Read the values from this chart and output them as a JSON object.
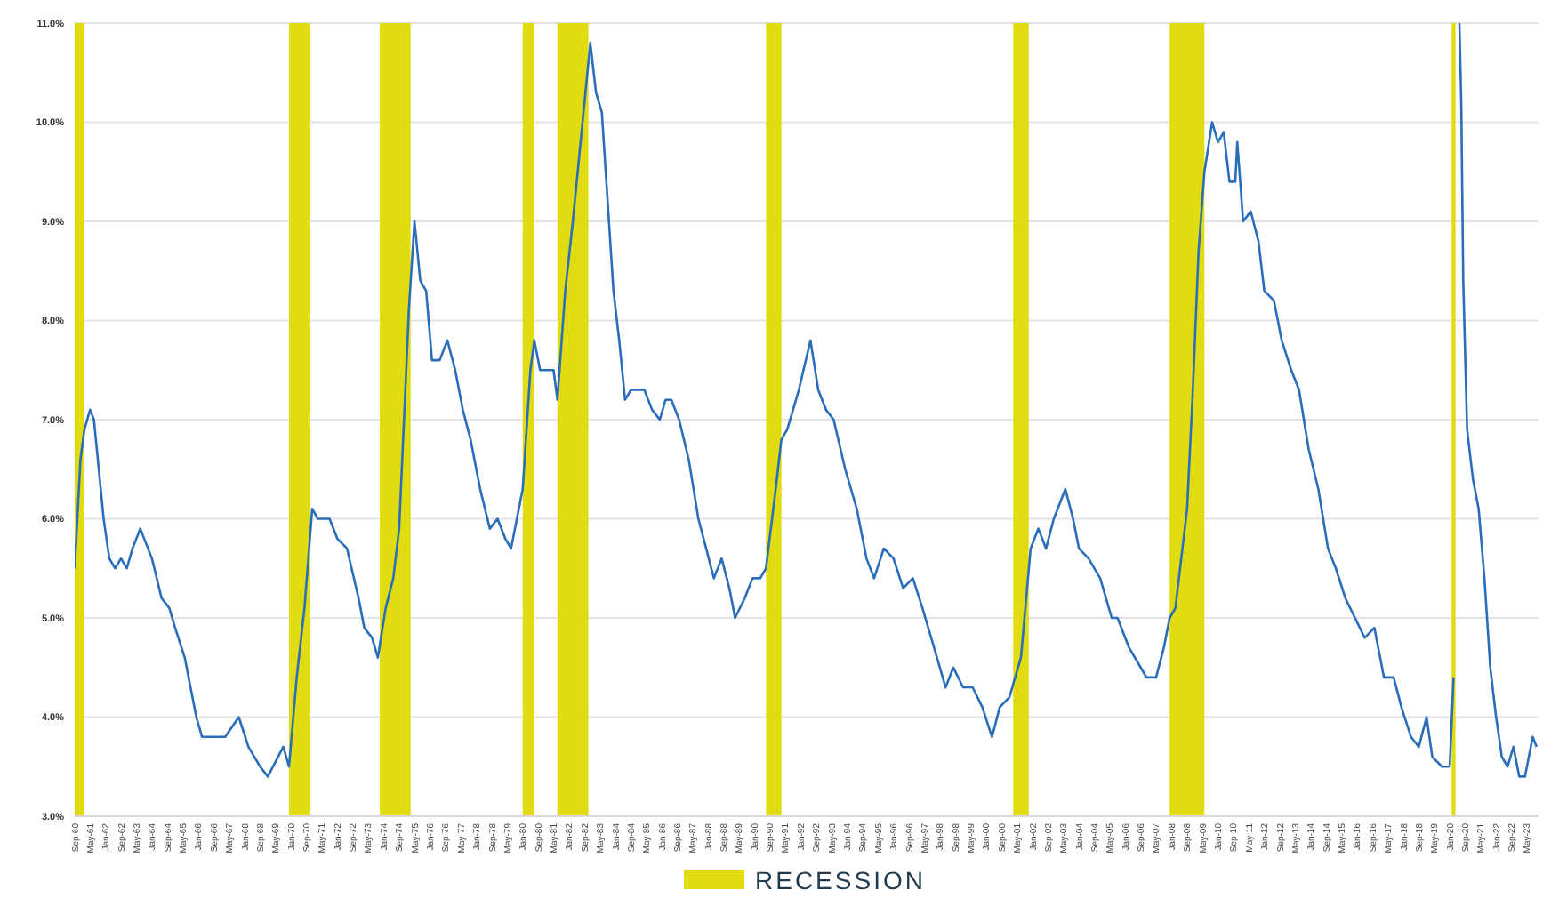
{
  "chart_data": {
    "type": "line",
    "legend": "bottom",
    "grid": "y",
    "x": [
      "1960-09",
      "1960-12",
      "1961-02",
      "1961-05",
      "1961-07",
      "1961-12",
      "1962-03",
      "1962-06",
      "1962-09",
      "1962-12",
      "1963-03",
      "1963-07",
      "1964-01",
      "1964-06",
      "1964-10",
      "1965-01",
      "1965-06",
      "1965-12",
      "1966-03",
      "1966-09",
      "1967-03",
      "1967-10",
      "1968-03",
      "1968-09",
      "1969-01",
      "1969-09",
      "1969-12",
      "1970-04",
      "1970-08",
      "1970-12",
      "1971-03",
      "1971-09",
      "1972-01",
      "1972-06",
      "1972-12",
      "1973-03",
      "1973-07",
      "1973-10",
      "1974-02",
      "1974-06",
      "1974-09",
      "1974-12",
      "1975-02",
      "1975-05",
      "1975-08",
      "1975-11",
      "1976-02",
      "1976-06",
      "1976-10",
      "1977-02",
      "1977-06",
      "1977-10",
      "1978-03",
      "1978-08",
      "1978-12",
      "1979-04",
      "1979-07",
      "1979-10",
      "1980-01",
      "1980-05",
      "1980-07",
      "1980-10",
      "1981-01",
      "1981-05",
      "1981-07",
      "1981-11",
      "1982-03",
      "1982-07",
      "1982-12",
      "1983-03",
      "1983-06",
      "1983-08",
      "1983-12",
      "1984-03",
      "1984-06",
      "1984-09",
      "1984-12",
      "1985-04",
      "1985-08",
      "1985-12",
      "1986-03",
      "1986-06",
      "1986-10",
      "1987-03",
      "1987-08",
      "1987-12",
      "1988-04",
      "1988-08",
      "1988-12",
      "1989-03",
      "1989-08",
      "1989-12",
      "1990-04",
      "1990-07",
      "1990-12",
      "1991-03",
      "1991-06",
      "1991-12",
      "1992-06",
      "1992-10",
      "1993-02",
      "1993-06",
      "1993-12",
      "1994-06",
      "1994-11",
      "1995-03",
      "1995-08",
      "1996-01",
      "1996-06",
      "1996-11",
      "1997-04",
      "1997-10",
      "1998-04",
      "1998-08",
      "1999-01",
      "1999-06",
      "1999-11",
      "2000-04",
      "2000-08",
      "2001-01",
      "2001-04",
      "2001-07",
      "2001-12",
      "2002-04",
      "2002-08",
      "2002-12",
      "2003-06",
      "2003-10",
      "2004-01",
      "2004-06",
      "2004-12",
      "2005-06",
      "2005-09",
      "2006-03",
      "2006-09",
      "2006-12",
      "2007-05",
      "2007-09",
      "2007-12",
      "2008-03",
      "2008-06",
      "2008-09",
      "2008-12",
      "2009-03",
      "2009-06",
      "2009-10",
      "2010-01",
      "2010-04",
      "2010-07",
      "2010-10",
      "2010-11",
      "2011-02",
      "2011-06",
      "2011-10",
      "2012-01",
      "2012-06",
      "2012-10",
      "2013-03",
      "2013-07",
      "2013-12",
      "2014-05",
      "2014-10",
      "2015-02",
      "2015-07",
      "2015-12",
      "2016-05",
      "2016-10",
      "2017-03",
      "2017-08",
      "2017-12",
      "2018-05",
      "2018-09",
      "2019-01",
      "2019-04",
      "2019-09",
      "2020-01",
      "2020-03",
      "2020-04",
      "2020-05",
      "2020-06",
      "2020-07",
      "2020-08",
      "2020-10",
      "2021-01",
      "2021-04",
      "2021-07",
      "2021-10",
      "2022-01",
      "2022-04",
      "2022-07",
      "2022-10",
      "2023-01",
      "2023-04",
      "2023-06",
      "2023-08",
      "2023-10"
    ],
    "series": [
      {
        "color": "#2a6ebb",
        "values": [
          5.5,
          6.6,
          6.9,
          7.1,
          7.0,
          6.0,
          5.6,
          5.5,
          5.6,
          5.5,
          5.7,
          5.9,
          5.6,
          5.2,
          5.1,
          4.9,
          4.6,
          4.0,
          3.8,
          3.8,
          3.8,
          4.0,
          3.7,
          3.5,
          3.4,
          3.7,
          3.5,
          4.4,
          5.1,
          6.1,
          6.0,
          6.0,
          5.8,
          5.7,
          5.2,
          4.9,
          4.8,
          4.6,
          5.1,
          5.4,
          5.9,
          7.2,
          8.1,
          9.0,
          8.4,
          8.3,
          7.6,
          7.6,
          7.8,
          7.5,
          7.1,
          6.8,
          6.3,
          5.9,
          6.0,
          5.8,
          5.7,
          6.0,
          6.3,
          7.5,
          7.8,
          7.5,
          7.5,
          7.5,
          7.2,
          8.3,
          9.0,
          9.8,
          10.8,
          10.3,
          10.1,
          9.5,
          8.3,
          7.8,
          7.2,
          7.3,
          7.3,
          7.3,
          7.1,
          7.0,
          7.2,
          7.2,
          7.0,
          6.6,
          6.0,
          5.7,
          5.4,
          5.6,
          5.3,
          5.0,
          5.2,
          5.4,
          5.4,
          5.5,
          6.3,
          6.8,
          6.9,
          7.3,
          7.8,
          7.3,
          7.1,
          7.0,
          6.5,
          6.1,
          5.6,
          5.4,
          5.7,
          5.6,
          5.3,
          5.4,
          5.1,
          4.7,
          4.3,
          4.5,
          4.3,
          4.3,
          4.1,
          3.8,
          4.1,
          4.2,
          4.4,
          4.6,
          5.7,
          5.9,
          5.7,
          6.0,
          6.3,
          6.0,
          5.7,
          5.6,
          5.4,
          5.0,
          5.0,
          4.7,
          4.5,
          4.4,
          4.4,
          4.7,
          5.0,
          5.1,
          5.6,
          6.1,
          7.3,
          8.7,
          9.5,
          10.0,
          9.8,
          9.9,
          9.4,
          9.4,
          9.8,
          9.0,
          9.1,
          8.8,
          8.3,
          8.2,
          7.8,
          7.5,
          7.3,
          6.7,
          6.3,
          5.7,
          5.5,
          5.2,
          5.0,
          4.8,
          4.9,
          4.4,
          4.4,
          4.1,
          3.8,
          3.7,
          4.0,
          3.6,
          3.5,
          3.5,
          4.4,
          null,
          null,
          11.0,
          10.2,
          8.4,
          6.9,
          6.4,
          6.1,
          5.4,
          4.5,
          4.0,
          3.6,
          3.5,
          3.7,
          3.4,
          3.4,
          3.6,
          3.8,
          3.7
        ]
      }
    ],
    "xlim": [
      "1960-09",
      "2023-11"
    ],
    "ylim": [
      3,
      11
    ],
    "yticks": [
      {
        "value": 3,
        "label": "3.0%"
      },
      {
        "value": 4,
        "label": "4.0%"
      },
      {
        "value": 5,
        "label": "5.0%"
      },
      {
        "value": 6,
        "label": "6.0%"
      },
      {
        "value": 7,
        "label": "7.0%"
      },
      {
        "value": 8,
        "label": "8.0%"
      },
      {
        "value": 9,
        "label": "9.0%"
      },
      {
        "value": 10,
        "label": "10.0%"
      },
      {
        "value": 11,
        "label": "11.0%"
      }
    ],
    "xticks": [
      {
        "value": "1960-09",
        "label": "Sep-60"
      },
      {
        "value": "1961-05",
        "label": "May-61"
      },
      {
        "value": "1962-01",
        "label": "Jan-62"
      },
      {
        "value": "1962-09",
        "label": "Sep-62"
      },
      {
        "value": "1963-05",
        "label": "May-63"
      },
      {
        "value": "1964-01",
        "label": "Jan-64"
      },
      {
        "value": "1964-09",
        "label": "Sep-64"
      },
      {
        "value": "1965-05",
        "label": "May-65"
      },
      {
        "value": "1966-01",
        "label": "Jan-66"
      },
      {
        "value": "1966-09",
        "label": "Sep-66"
      },
      {
        "value": "1967-05",
        "label": "May-67"
      },
      {
        "value": "1968-01",
        "label": "Jan-68"
      },
      {
        "value": "1968-09",
        "label": "Sep-68"
      },
      {
        "value": "1969-05",
        "label": "May-69"
      },
      {
        "value": "1970-01",
        "label": "Jan-70"
      },
      {
        "value": "1970-09",
        "label": "Sep-70"
      },
      {
        "value": "1971-05",
        "label": "May-71"
      },
      {
        "value": "1972-01",
        "label": "Jan-72"
      },
      {
        "value": "1972-09",
        "label": "Sep-72"
      },
      {
        "value": "1973-05",
        "label": "May-73"
      },
      {
        "value": "1974-01",
        "label": "Jan-74"
      },
      {
        "value": "1974-09",
        "label": "Sep-74"
      },
      {
        "value": "1975-05",
        "label": "May-75"
      },
      {
        "value": "1976-01",
        "label": "Jan-76"
      },
      {
        "value": "1976-09",
        "label": "Sep-76"
      },
      {
        "value": "1977-05",
        "label": "May-77"
      },
      {
        "value": "1978-01",
        "label": "Jan-78"
      },
      {
        "value": "1978-09",
        "label": "Sep-78"
      },
      {
        "value": "1979-05",
        "label": "May-79"
      },
      {
        "value": "1980-01",
        "label": "Jan-80"
      },
      {
        "value": "1980-09",
        "label": "Sep-80"
      },
      {
        "value": "1981-05",
        "label": "May-81"
      },
      {
        "value": "1982-01",
        "label": "Jan-82"
      },
      {
        "value": "1982-09",
        "label": "Sep-82"
      },
      {
        "value": "1983-05",
        "label": "May-83"
      },
      {
        "value": "1984-01",
        "label": "Jan-84"
      },
      {
        "value": "1984-09",
        "label": "Sep-84"
      },
      {
        "value": "1985-05",
        "label": "May-85"
      },
      {
        "value": "1986-01",
        "label": "Jan-86"
      },
      {
        "value": "1986-09",
        "label": "Sep-86"
      },
      {
        "value": "1987-05",
        "label": "May-87"
      },
      {
        "value": "1988-01",
        "label": "Jan-88"
      },
      {
        "value": "1988-09",
        "label": "Sep-88"
      },
      {
        "value": "1989-05",
        "label": "May-89"
      },
      {
        "value": "1990-01",
        "label": "Jan-90"
      },
      {
        "value": "1990-09",
        "label": "Sep-90"
      },
      {
        "value": "1991-05",
        "label": "May-91"
      },
      {
        "value": "1992-01",
        "label": "Jan-92"
      },
      {
        "value": "1992-09",
        "label": "Sep-92"
      },
      {
        "value": "1993-05",
        "label": "May-93"
      },
      {
        "value": "1994-01",
        "label": "Jan-94"
      },
      {
        "value": "1994-09",
        "label": "Sep-94"
      },
      {
        "value": "1995-05",
        "label": "May-95"
      },
      {
        "value": "1996-01",
        "label": "Jan-96"
      },
      {
        "value": "1996-09",
        "label": "Sep-96"
      },
      {
        "value": "1997-05",
        "label": "May-97"
      },
      {
        "value": "1998-01",
        "label": "Jan-98"
      },
      {
        "value": "1998-09",
        "label": "Sep-98"
      },
      {
        "value": "1999-05",
        "label": "May-99"
      },
      {
        "value": "2000-01",
        "label": "Jan-00"
      },
      {
        "value": "2000-09",
        "label": "Sep-00"
      },
      {
        "value": "2001-05",
        "label": "May-01"
      },
      {
        "value": "2002-01",
        "label": "Jan-02"
      },
      {
        "value": "2002-09",
        "label": "Sep-02"
      },
      {
        "value": "2003-05",
        "label": "May-03"
      },
      {
        "value": "2004-01",
        "label": "Jan-04"
      },
      {
        "value": "2004-09",
        "label": "Sep-04"
      },
      {
        "value": "2005-05",
        "label": "May-05"
      },
      {
        "value": "2006-01",
        "label": "Jan-06"
      },
      {
        "value": "2006-09",
        "label": "Sep-06"
      },
      {
        "value": "2007-05",
        "label": "May-07"
      },
      {
        "value": "2008-01",
        "label": "Jan-08"
      },
      {
        "value": "2008-09",
        "label": "Sep-08"
      },
      {
        "value": "2009-05",
        "label": "May-09"
      },
      {
        "value": "2010-01",
        "label": "Jan-10"
      },
      {
        "value": "2010-09",
        "label": "Sep-10"
      },
      {
        "value": "2011-05",
        "label": "May-11"
      },
      {
        "value": "2012-01",
        "label": "Jan-12"
      },
      {
        "value": "2012-09",
        "label": "Sep-12"
      },
      {
        "value": "2013-05",
        "label": "May-13"
      },
      {
        "value": "2014-01",
        "label": "Jan-14"
      },
      {
        "value": "2014-09",
        "label": "Sep-14"
      },
      {
        "value": "2015-05",
        "label": "May-15"
      },
      {
        "value": "2016-01",
        "label": "Jan-16"
      },
      {
        "value": "2016-09",
        "label": "Sep-16"
      },
      {
        "value": "2017-05",
        "label": "May-17"
      },
      {
        "value": "2018-01",
        "label": "Jan-18"
      },
      {
        "value": "2018-09",
        "label": "Sep-18"
      },
      {
        "value": "2019-05",
        "label": "May-19"
      },
      {
        "value": "2020-01",
        "label": "Jan-20"
      },
      {
        "value": "2020-09",
        "label": "Sep-20"
      },
      {
        "value": "2021-05",
        "label": "May-21"
      },
      {
        "value": "2022-01",
        "label": "Jan-22"
      },
      {
        "value": "2022-09",
        "label": "Sep-22"
      },
      {
        "value": "2023-05",
        "label": "May-23"
      }
    ],
    "bands": [
      {
        "axis": "x",
        "from": "1960-09",
        "to": "1961-02",
        "label": "RECESSION",
        "color": "#e0dc10"
      },
      {
        "axis": "x",
        "from": "1969-12",
        "to": "1970-11",
        "color": "#e0dc10"
      },
      {
        "axis": "x",
        "from": "1973-11",
        "to": "1975-03",
        "color": "#e0dc10"
      },
      {
        "axis": "x",
        "from": "1980-01",
        "to": "1980-07",
        "color": "#e0dc10"
      },
      {
        "axis": "x",
        "from": "1981-07",
        "to": "1982-11",
        "color": "#e0dc10"
      },
      {
        "axis": "x",
        "from": "1990-07",
        "to": "1991-03",
        "color": "#e0dc10"
      },
      {
        "axis": "x",
        "from": "2001-03",
        "to": "2001-11",
        "color": "#e0dc10"
      },
      {
        "axis": "x",
        "from": "2007-12",
        "to": "2009-06",
        "color": "#e0dc10"
      },
      {
        "axis": "x",
        "from": "2020-02",
        "to": "2020-04",
        "color": "#e0dc10"
      }
    ]
  }
}
